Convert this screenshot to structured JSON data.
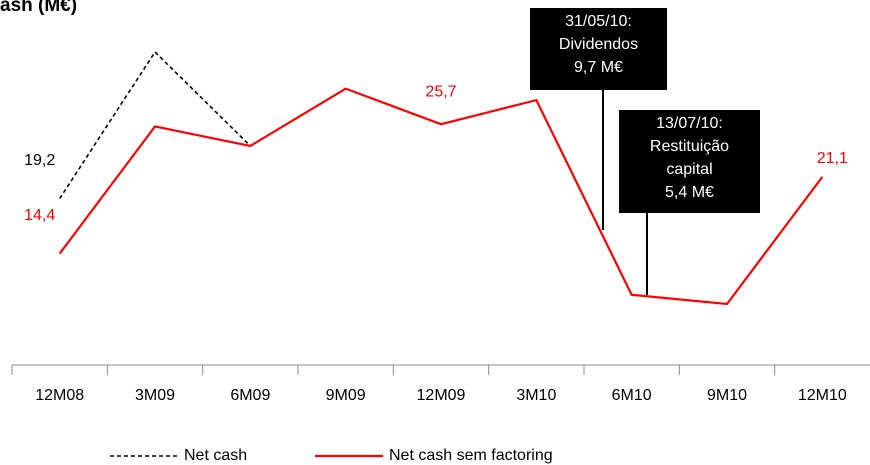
{
  "chart_data": {
    "type": "line",
    "title": "ash (M€)",
    "categories": [
      "12M08",
      "3M09",
      "6M09",
      "9M09",
      "12M09",
      "3M10",
      "6M10",
      "9M10",
      "12M10"
    ],
    "series": [
      {
        "name": "Net cash",
        "color": "#000000",
        "dash": true,
        "values": [
          19.2,
          32.0,
          23.8,
          null,
          null,
          null,
          null,
          null,
          null
        ],
        "value_labels": [
          "19,2",
          null,
          null,
          null,
          null,
          null,
          null,
          null,
          null
        ]
      },
      {
        "name": "Net cash sem factoring",
        "color": "#ff0000",
        "dash": false,
        "values": [
          14.4,
          25.5,
          23.8,
          28.8,
          25.7,
          27.8,
          10.8,
          10.0,
          21.1
        ],
        "value_labels": [
          "14,4",
          null,
          null,
          null,
          "25,7",
          null,
          null,
          null,
          "21,1"
        ]
      }
    ],
    "annotations": [
      {
        "lines": [
          "31/05/10:",
          "Dividendos",
          "9,7 M€"
        ]
      },
      {
        "lines": [
          "13/07/10:",
          "Restituição",
          "capital",
          "5,4 M€"
        ]
      }
    ]
  }
}
